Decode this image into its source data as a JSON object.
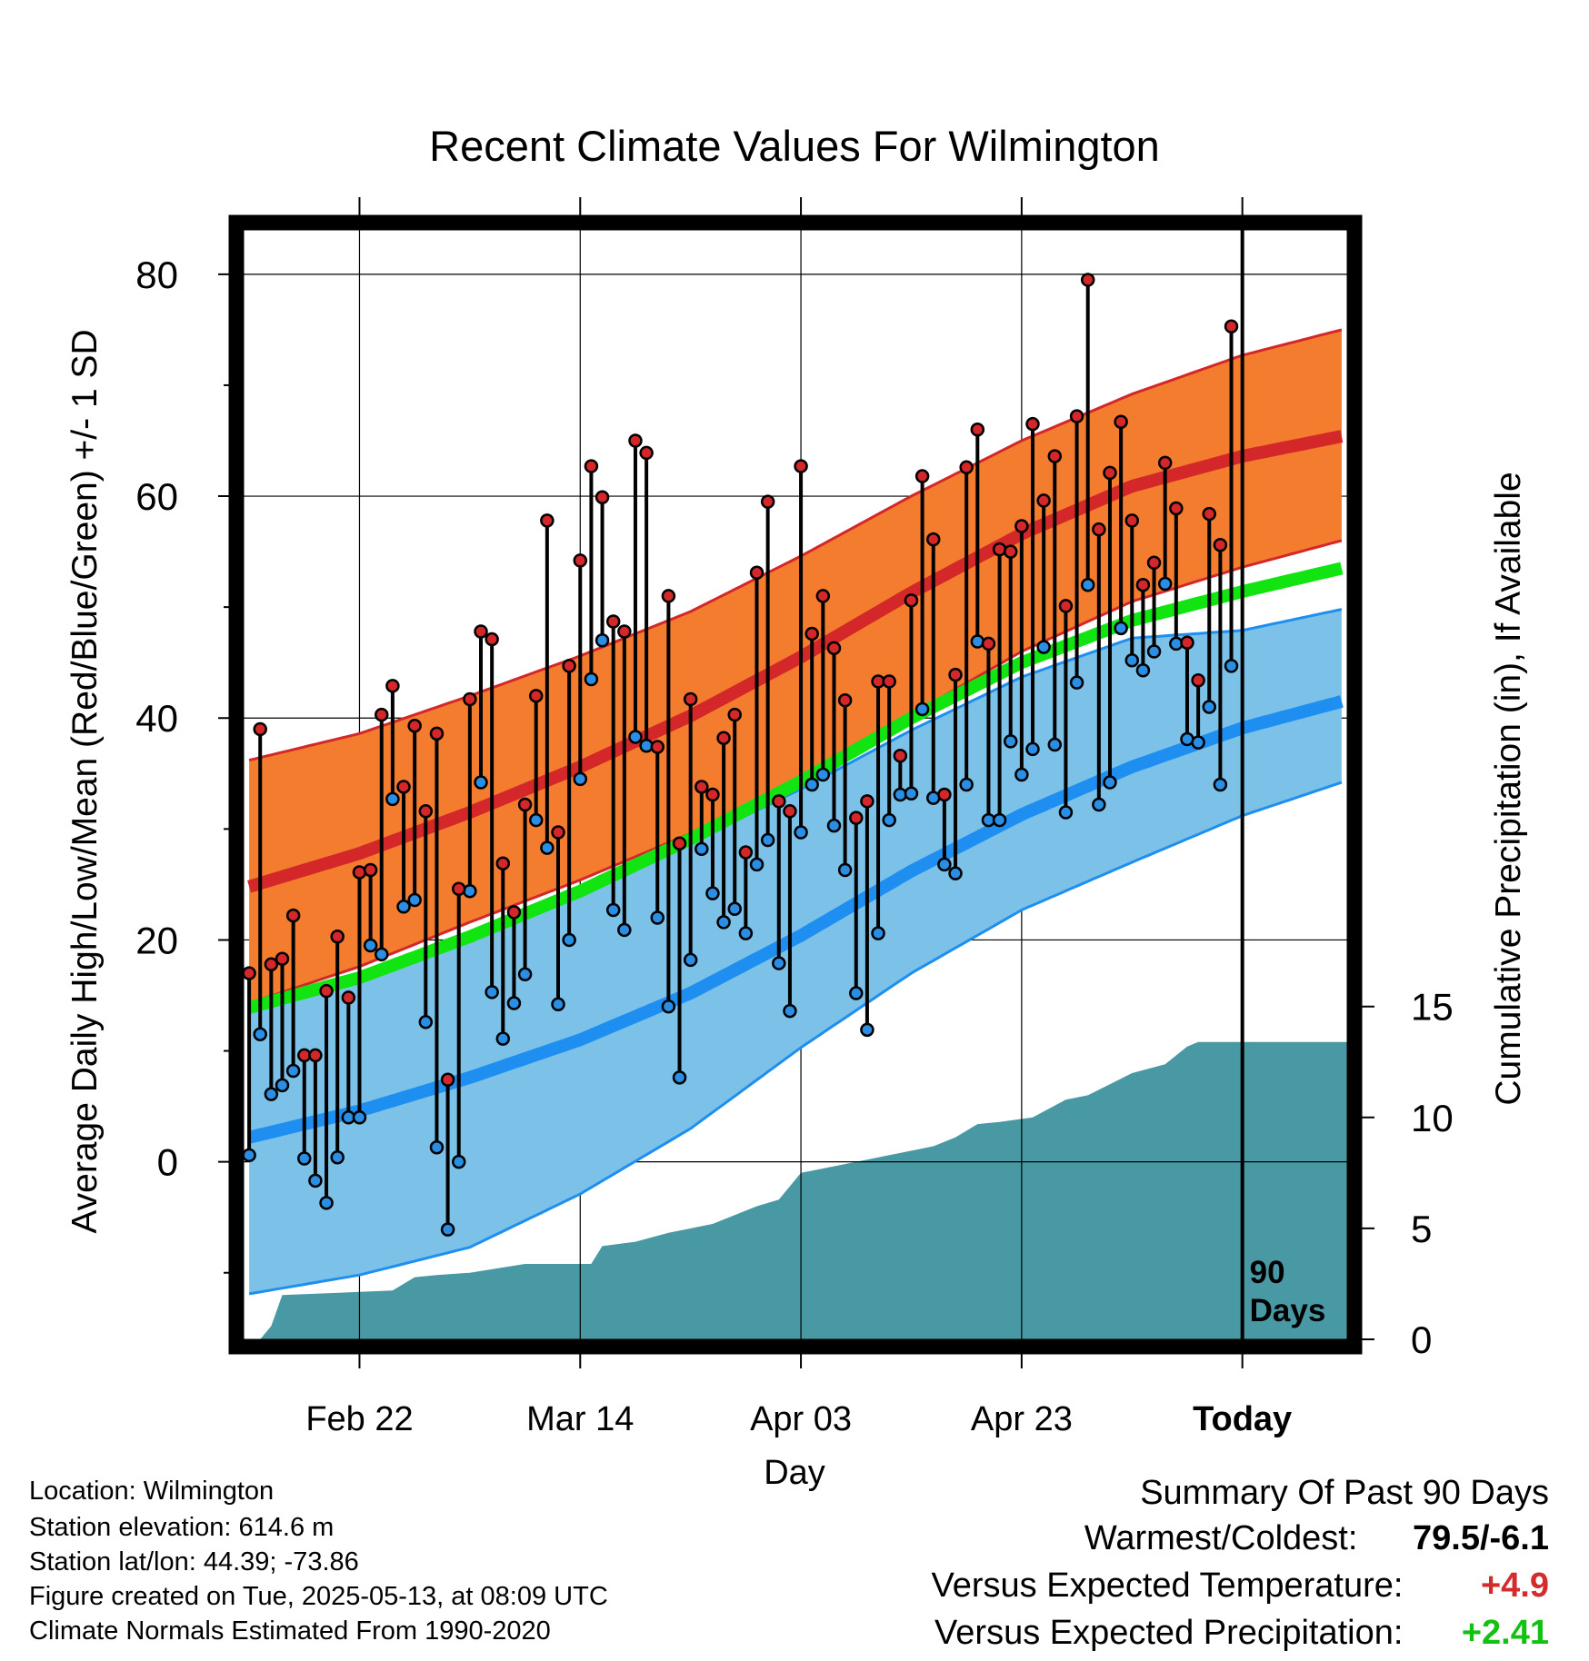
{
  "chart_data": {
    "type": "line",
    "title": "Recent Climate Values For Wilmington",
    "xlabel": "Day",
    "ylabel": "Average Daily High/Low/Mean (Red/Blue/Green) +/- 1 SD",
    "y2label": "Cumulative Precipitation (in), If Available",
    "xlim_day_index": [
      -0.5,
      99.5
    ],
    "ylim": [
      -16,
      84
    ],
    "y2lim": [
      0,
      50
    ],
    "x_ticks": [
      {
        "day": 10,
        "label": "Feb 22"
      },
      {
        "day": 30,
        "label": "Mar 14"
      },
      {
        "day": 50,
        "label": "Apr 03"
      },
      {
        "day": 70,
        "label": "Apr 23"
      },
      {
        "day": 90,
        "label": "Today"
      }
    ],
    "y_ticks": [
      0,
      20,
      40,
      60,
      80
    ],
    "y_minor_ticks": [
      -10,
      10,
      30,
      50,
      70
    ],
    "y2_ticks": [
      0,
      5,
      10,
      15
    ],
    "today_marker": {
      "day": 90,
      "label_line1": "90",
      "label_line2": "Days"
    },
    "grid": true,
    "colors": {
      "high_band": "#f47c2f",
      "high_band_edge": "#d3272a",
      "high_mean": "#d3272a",
      "overlap_mean": "#971313",
      "low_band": "#7cc2e8",
      "low_band_edge": "#1e8ff0",
      "low_mean": "#1e8ff0",
      "mean_line": "#11e411",
      "precip_fill": "#4899a3",
      "high_dot": "#d3272a",
      "low_dot": "#2a8ee5",
      "positive_temp": "#d42c2c",
      "positive_precip": "#12c112"
    },
    "normals": {
      "day": [
        0,
        10,
        20,
        30,
        40,
        50,
        60,
        70,
        80,
        90,
        99
      ],
      "high_mean": [
        24.8,
        27.8,
        31.5,
        35.6,
        40.2,
        45.5,
        51.3,
        56.6,
        60.9,
        63.6,
        65.4
      ],
      "high_sd_upper": [
        36.2,
        38.6,
        42.0,
        45.6,
        49.6,
        54.6,
        60.0,
        65.0,
        69.2,
        72.7,
        75.0
      ],
      "high_sd_lower": [
        14.3,
        17.6,
        21.6,
        25.4,
        29.6,
        34.4,
        40.3,
        46.0,
        50.5,
        53.6,
        56.0
      ],
      "low_mean": [
        2.2,
        4.6,
        7.6,
        11.0,
        15.2,
        20.4,
        26.2,
        31.3,
        35.6,
        39.1,
        41.5
      ],
      "low_sd_upper": [
        13.6,
        17.0,
        20.6,
        24.2,
        28.8,
        33.6,
        38.9,
        43.7,
        47.2,
        47.9,
        49.8
      ],
      "low_sd_lower": [
        -11.9,
        -10.2,
        -7.7,
        -2.9,
        3.0,
        10.3,
        17.0,
        22.7,
        27.0,
        31.2,
        34.2
      ],
      "mean_line": [
        13.9,
        16.6,
        20.3,
        24.4,
        29.1,
        34.3,
        40.0,
        45.0,
        48.8,
        51.4,
        53.5
      ]
    },
    "daily_high": [
      17,
      39,
      17.8,
      18.3,
      22.2,
      9.6,
      9.6,
      15.4,
      20.3,
      14.8,
      26.1,
      26.3,
      40.3,
      42.9,
      33.8,
      39.3,
      31.6,
      38.6,
      7.4,
      24.6,
      41.7,
      47.8,
      47.1,
      26.9,
      22.5,
      32.2,
      42.0,
      57.8,
      29.7,
      44.7,
      54.2,
      62.7,
      59.9,
      48.7,
      47.8,
      65.0,
      63.9,
      37.4,
      51.0,
      28.7,
      41.7,
      33.8,
      33.1,
      38.2,
      40.3,
      27.9,
      53.1,
      59.5,
      32.5,
      31.6,
      62.7,
      47.6,
      51.0,
      46.3,
      41.6,
      31.0,
      32.5,
      43.3,
      43.3,
      36.6,
      50.6,
      61.8,
      56.1,
      33.1,
      43.9,
      62.6,
      66.0,
      46.7,
      55.2,
      55.0,
      57.3,
      66.5,
      59.6,
      63.6,
      50.1,
      67.2,
      79.5,
      57.0,
      62.1,
      66.7,
      57.8,
      52.0,
      54.0,
      63.0,
      58.9,
      46.8,
      43.4,
      58.4,
      55.6,
      75.3
    ],
    "daily_low": [
      0.6,
      11.5,
      6.1,
      6.9,
      8.2,
      0.3,
      -1.7,
      -3.7,
      0.4,
      4.0,
      4.0,
      19.5,
      18.7,
      32.7,
      23.0,
      23.6,
      12.6,
      1.3,
      -6.1,
      0.0,
      24.4,
      34.2,
      15.3,
      11.1,
      14.3,
      16.9,
      30.8,
      28.3,
      14.2,
      20.0,
      34.5,
      43.5,
      47.0,
      22.7,
      20.9,
      38.3,
      37.5,
      22.0,
      14.0,
      7.6,
      18.2,
      28.2,
      24.2,
      21.6,
      22.8,
      20.6,
      26.8,
      29.0,
      17.9,
      13.6,
      29.7,
      34.0,
      34.9,
      30.3,
      26.3,
      15.2,
      11.9,
      20.6,
      30.8,
      33.1,
      33.2,
      40.8,
      32.8,
      26.8,
      26.0,
      34.0,
      46.9,
      30.8,
      30.8,
      37.9,
      34.9,
      37.2,
      46.4,
      37.6,
      31.5,
      43.2,
      52.0,
      32.2,
      34.2,
      48.1,
      45.2,
      44.3,
      46.0,
      52.1,
      46.7,
      38.1,
      37.8,
      41.0,
      34.0,
      44.7
    ],
    "cumulative_precip": [
      [
        -0.5,
        0
      ],
      [
        1,
        0
      ],
      [
        2,
        0.6
      ],
      [
        3,
        2.0
      ],
      [
        13,
        2.2
      ],
      [
        15,
        2.8
      ],
      [
        17,
        2.9
      ],
      [
        20,
        3.0
      ],
      [
        25,
        3.4
      ],
      [
        31,
        3.4
      ],
      [
        32,
        4.2
      ],
      [
        35,
        4.4
      ],
      [
        38,
        4.8
      ],
      [
        42,
        5.2
      ],
      [
        44,
        5.6
      ],
      [
        46,
        6.0
      ],
      [
        48,
        6.3
      ],
      [
        50,
        7.5
      ],
      [
        56,
        8.1
      ],
      [
        58,
        8.3
      ],
      [
        62,
        8.7
      ],
      [
        64,
        9.1
      ],
      [
        66,
        9.7
      ],
      [
        68,
        9.8
      ],
      [
        71,
        10.0
      ],
      [
        74,
        10.8
      ],
      [
        76,
        11.0
      ],
      [
        78,
        11.5
      ],
      [
        80,
        12.0
      ],
      [
        83,
        12.4
      ],
      [
        85,
        13.2
      ],
      [
        86,
        13.4
      ],
      [
        99.5,
        13.4
      ]
    ]
  },
  "footer": {
    "location": "Location: Wilmington",
    "elevation": "Station elevation: 614.6 m",
    "latlon": "Station lat/lon: 44.39; -73.86",
    "created": "Figure created on Tue, 2025-05-13, at 08:09 UTC",
    "normals": "Climate Normals Estimated From 1990-2020"
  },
  "summary": {
    "heading": "Summary Of Past 90 Days",
    "warmest_coldest_label": "Warmest/Coldest:",
    "warmest_coldest_value": "79.5/-6.1",
    "temp_label": "Versus Expected Temperature:",
    "temp_value": "+4.9",
    "precip_label": "Versus Expected Precipitation:",
    "precip_value": "+2.41"
  }
}
